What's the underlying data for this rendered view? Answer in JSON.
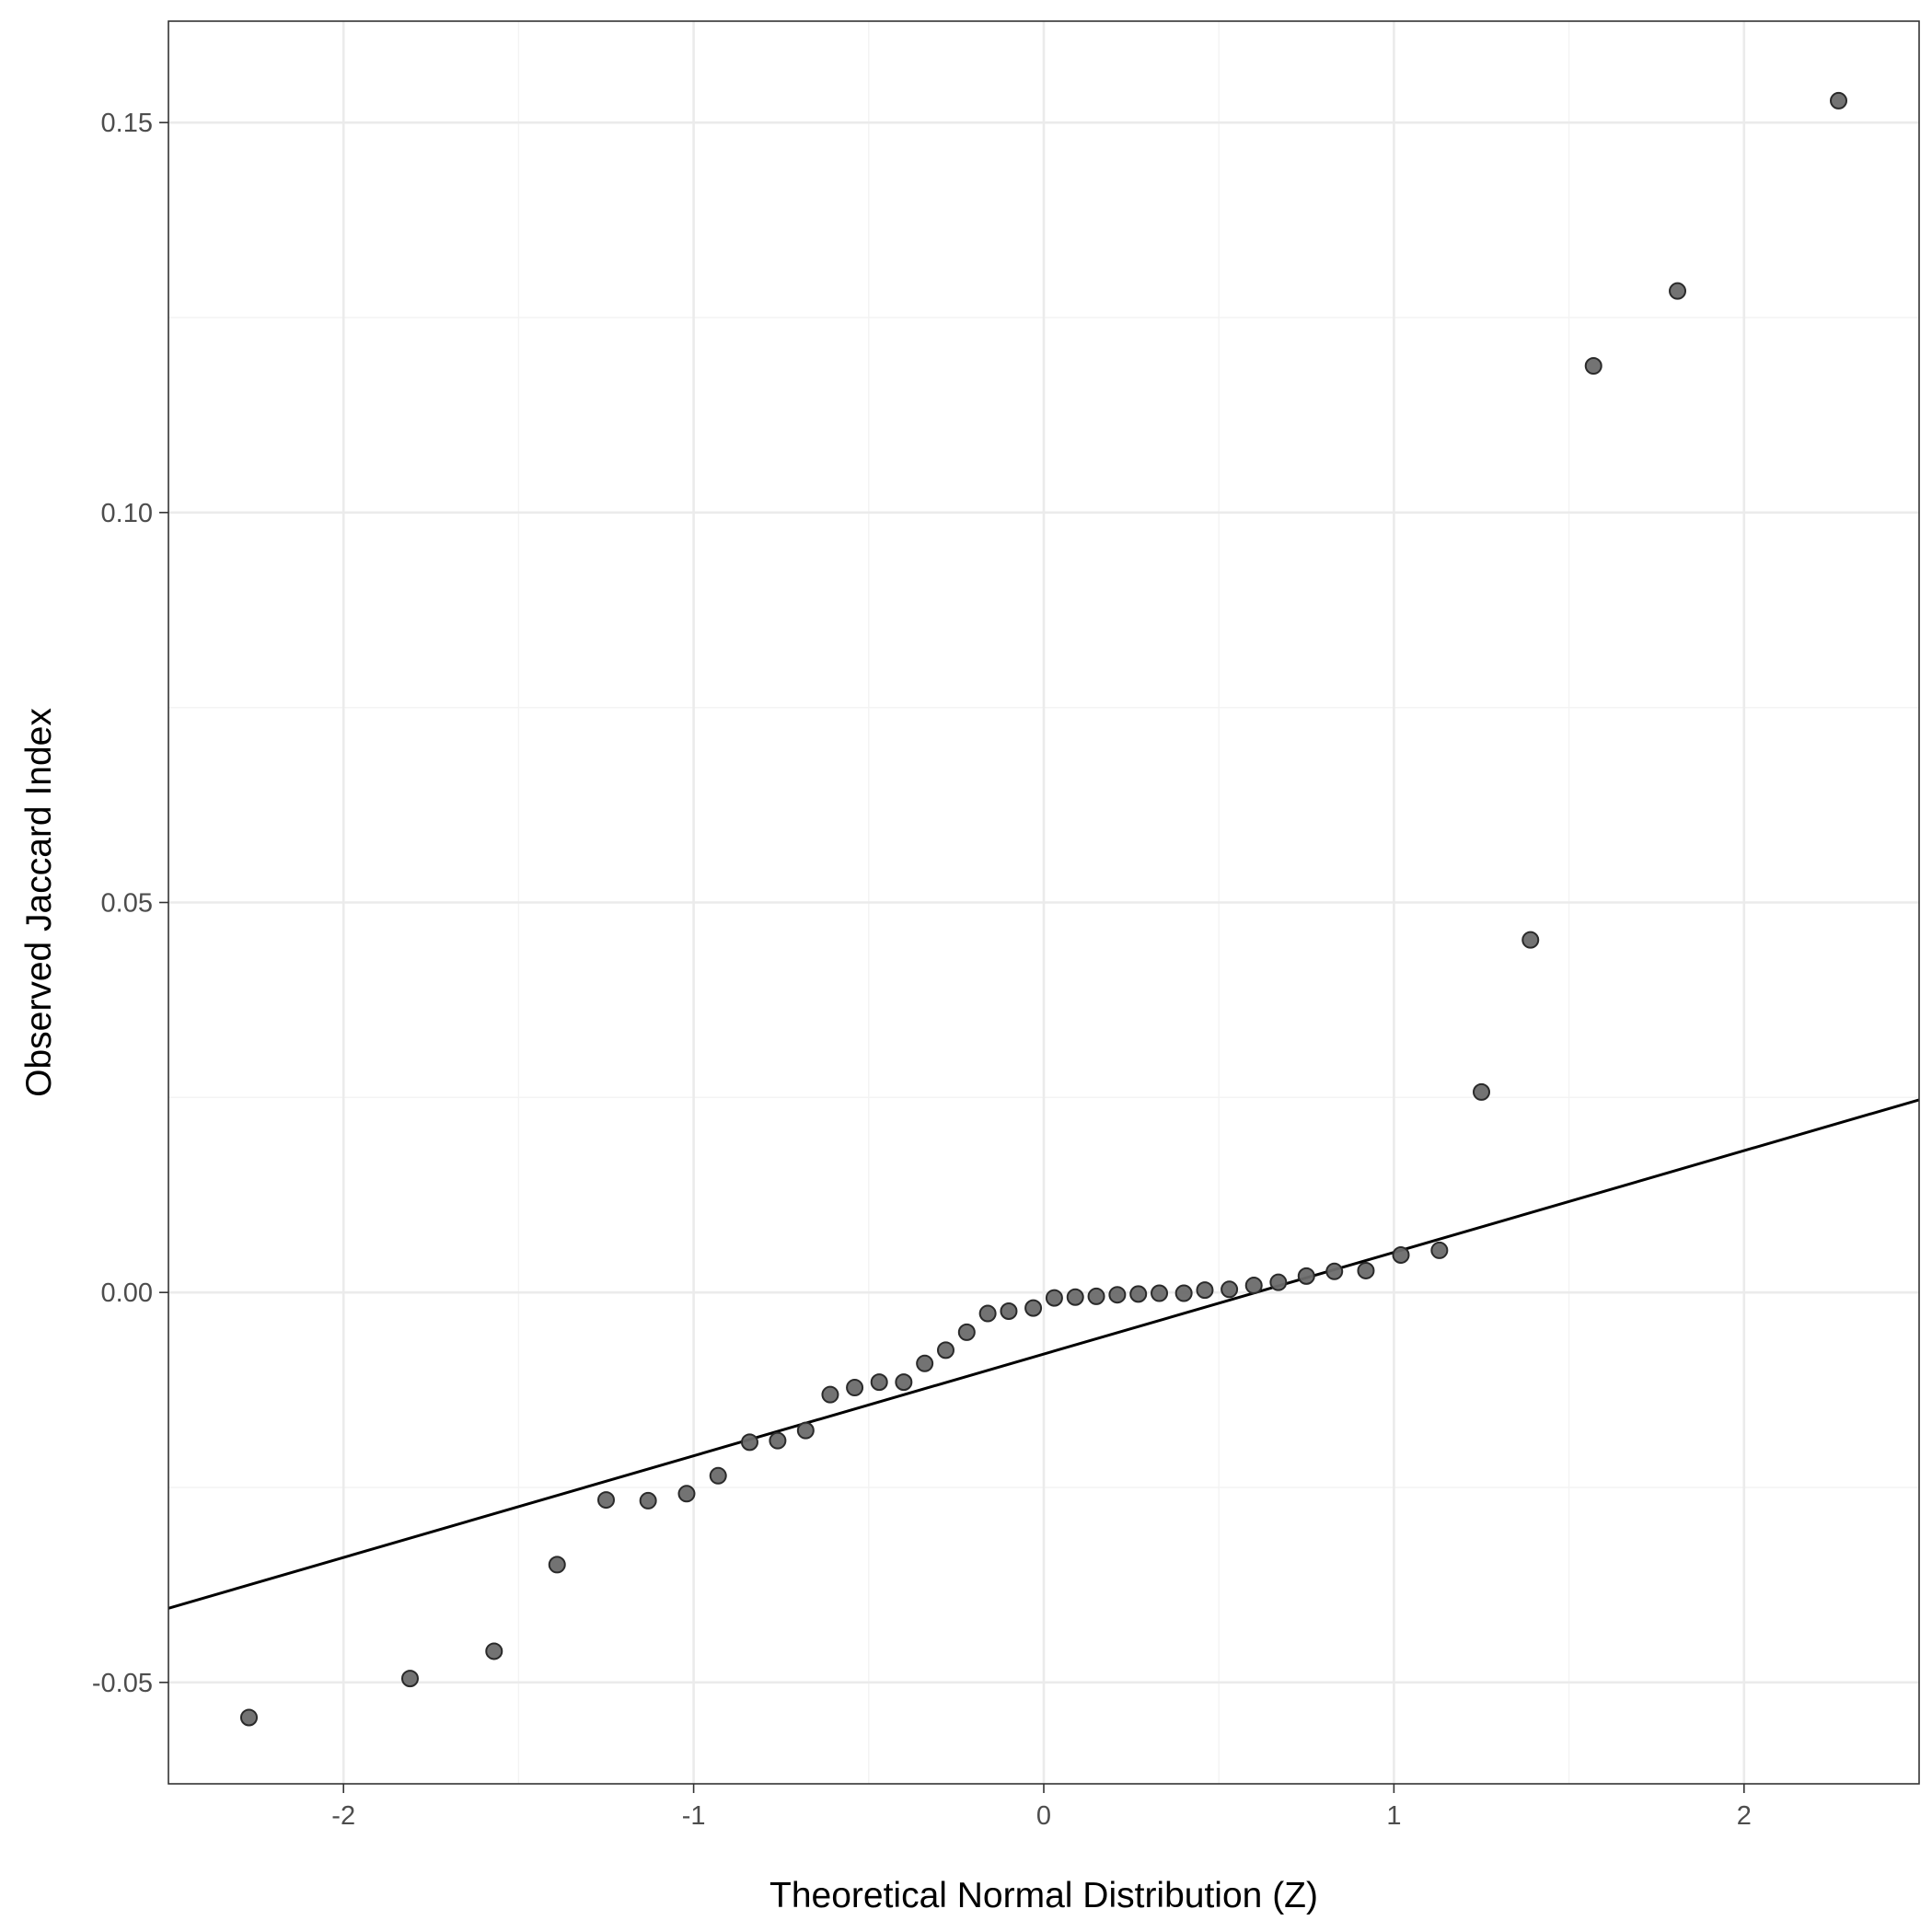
{
  "chart_data": {
    "type": "scatter",
    "xlabel": "Theoretical Normal Distribution (Z)",
    "ylabel": "Observed Jaccard Index",
    "xlim": [
      -2.5,
      2.5
    ],
    "ylim": [
      -0.063,
      0.163
    ],
    "x_ticks": [
      -2,
      -1,
      0,
      1,
      2
    ],
    "x_tick_labels": [
      "-2",
      "-1",
      "0",
      "1",
      "2"
    ],
    "y_ticks": [
      -0.05,
      0,
      0.05,
      0.1,
      0.15
    ],
    "y_tick_labels": [
      "-0.05",
      "0.00",
      "0.05",
      "0.10",
      "0.15"
    ],
    "x_minor_ticks": [
      -1.5,
      -0.5,
      0.5,
      1.5
    ],
    "y_minor_ticks": [
      -0.025,
      0.025,
      0.075,
      0.125
    ],
    "grid": true,
    "point_color": "#6b6b6b",
    "line_color": "#000000",
    "reference_line": {
      "x": [
        -2.5,
        2.5
      ],
      "y": [
        -0.0405,
        0.0247
      ]
    },
    "points": {
      "x": [
        -2.27,
        -1.81,
        -1.57,
        -1.39,
        -1.25,
        -1.13,
        -1.02,
        -0.93,
        -0.84,
        -0.76,
        -0.68,
        -0.61,
        -0.54,
        -0.47,
        -0.4,
        -0.34,
        -0.28,
        -0.22,
        -0.16,
        -0.1,
        -0.03,
        0.03,
        0.09,
        0.15,
        0.21,
        0.27,
        0.33,
        0.4,
        0.46,
        0.53,
        0.6,
        0.67,
        0.75,
        0.83,
        0.92,
        1.02,
        1.13,
        1.25,
        1.39,
        1.57,
        1.81,
        2.27
      ],
      "y": [
        -0.0545,
        -0.0495,
        -0.046,
        -0.0349,
        -0.0266,
        -0.0267,
        -0.0258,
        -0.0235,
        -0.0192,
        -0.019,
        -0.0177,
        -0.0131,
        -0.0122,
        -0.0115,
        -0.0115,
        -0.0091,
        -0.0074,
        -0.0051,
        -0.0027,
        -0.0024,
        -0.002,
        -0.0007,
        -0.0006,
        -0.0005,
        -0.0003,
        -0.0002,
        -0.0001,
        -0.0001,
        0.0003,
        0.0004,
        0.0009,
        0.0013,
        0.0021,
        0.0027,
        0.0028,
        0.0048,
        0.0054,
        0.0257,
        0.0452,
        0.1188,
        0.1284,
        0.1528
      ]
    }
  }
}
